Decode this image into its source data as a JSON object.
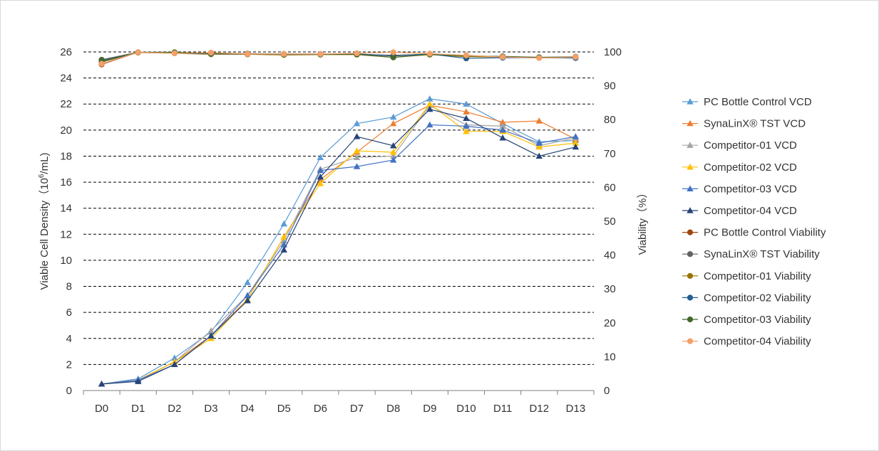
{
  "chart_data": {
    "type": "line",
    "title": "",
    "categories": [
      "D0",
      "D1",
      "D2",
      "D3",
      "D4",
      "D5",
      "D6",
      "D7",
      "D8",
      "D9",
      "D10",
      "D11",
      "D12",
      "D13"
    ],
    "y_left": {
      "label_prefix": "Viable Cell Density",
      "label_unit_open": "（10",
      "label_unit_sup": "6",
      "label_unit_close": "/mL)",
      "ylim": [
        0,
        26
      ],
      "ticks": [
        "0",
        "2",
        "4",
        "6",
        "8",
        "10",
        "12",
        "14",
        "16",
        "18",
        "20",
        "22",
        "24",
        "26"
      ]
    },
    "y_right": {
      "label": "Viability（%）",
      "ylim": [
        0,
        100
      ],
      "ticks": [
        "0",
        "10",
        "20",
        "30",
        "40",
        "50",
        "60",
        "70",
        "80",
        "90",
        "100"
      ]
    },
    "grid": true,
    "legend_position": "right",
    "series": [
      {
        "name": "PC Bottle Control VCD",
        "axis": "left",
        "marker": "triangle",
        "color": "#5b9bd5",
        "values": [
          0.5,
          0.9,
          2.5,
          4.5,
          8.3,
          12.8,
          17.9,
          20.5,
          21.0,
          22.4,
          22.0,
          20.5,
          19.1,
          19.2
        ]
      },
      {
        "name": "SynaLinX® TST VCD",
        "axis": "left",
        "marker": "triangle",
        "color": "#ed7d31",
        "values": [
          0.5,
          0.8,
          2.2,
          4.2,
          7.0,
          11.8,
          16.2,
          18.3,
          20.5,
          21.9,
          21.4,
          20.6,
          20.7,
          19.3
        ]
      },
      {
        "name": "Competitor-01 VCD",
        "axis": "left",
        "marker": "triangle",
        "color": "#a5a5a5",
        "values": [
          0.5,
          0.8,
          2.2,
          4.6,
          7.3,
          11.5,
          17.0,
          17.9,
          18.0,
          21.9,
          20.4,
          20.3,
          18.8,
          19.4
        ]
      },
      {
        "name": "Competitor-02 VCD",
        "axis": "left",
        "marker": "triangle",
        "color": "#ffc000",
        "values": [
          0.5,
          0.8,
          2.2,
          4.0,
          7.0,
          11.8,
          15.9,
          18.4,
          18.3,
          22.0,
          19.9,
          19.9,
          18.7,
          19.0
        ]
      },
      {
        "name": "Competitor-03 VCD",
        "axis": "left",
        "marker": "triangle",
        "color": "#4472c4",
        "values": [
          0.5,
          0.8,
          2.0,
          4.2,
          7.3,
          11.2,
          16.9,
          17.2,
          17.7,
          20.4,
          20.3,
          20.0,
          19.0,
          19.5
        ]
      },
      {
        "name": "Competitor-04 VCD",
        "axis": "left",
        "marker": "triangle",
        "color": "#264478",
        "values": [
          0.5,
          0.7,
          2.0,
          4.2,
          6.9,
          10.8,
          16.4,
          19.5,
          18.8,
          21.6,
          20.9,
          19.4,
          18.0,
          18.7
        ]
      },
      {
        "name": "PC Bottle Control Viability",
        "axis": "right",
        "marker": "circle",
        "color": "#9e480e",
        "values": [
          96.3,
          99.9,
          99.7,
          99.5,
          99.3,
          99.3,
          99.3,
          99.3,
          99.0,
          99.3,
          98.8,
          98.6,
          98.3,
          98.4
        ]
      },
      {
        "name": "SynaLinX® TST Viability",
        "axis": "right",
        "marker": "circle",
        "color": "#636363",
        "values": [
          97.7,
          99.9,
          99.8,
          99.7,
          99.5,
          99.4,
          99.4,
          99.4,
          98.9,
          99.4,
          98.9,
          98.6,
          98.4,
          98.6
        ]
      },
      {
        "name": "Competitor-01 Viability",
        "axis": "right",
        "marker": "circle",
        "color": "#997300",
        "values": [
          97.0,
          99.8,
          99.6,
          99.3,
          99.3,
          99.1,
          99.2,
          99.2,
          98.4,
          99.2,
          98.6,
          98.5,
          98.3,
          98.3
        ]
      },
      {
        "name": "Competitor-02 Viability",
        "axis": "right",
        "marker": "circle",
        "color": "#255e91",
        "values": [
          97.2,
          99.9,
          99.7,
          99.5,
          99.4,
          99.3,
          99.3,
          99.4,
          98.8,
          99.4,
          98.1,
          98.3,
          98.3,
          98.2
        ]
      },
      {
        "name": "Competitor-03  Viability",
        "axis": "right",
        "marker": "circle",
        "color": "#43682b",
        "values": [
          97.5,
          99.9,
          99.9,
          99.6,
          99.4,
          99.4,
          99.3,
          99.3,
          98.4,
          99.3,
          98.8,
          98.7,
          98.4,
          98.5
        ]
      },
      {
        "name": "Competitor-04  Viability",
        "axis": "right",
        "marker": "circle",
        "color": "#f4a068",
        "values": [
          96.5,
          99.9,
          99.6,
          99.8,
          99.4,
          99.4,
          99.4,
          99.6,
          99.9,
          99.5,
          99.0,
          98.5,
          98.2,
          98.5
        ]
      }
    ]
  }
}
